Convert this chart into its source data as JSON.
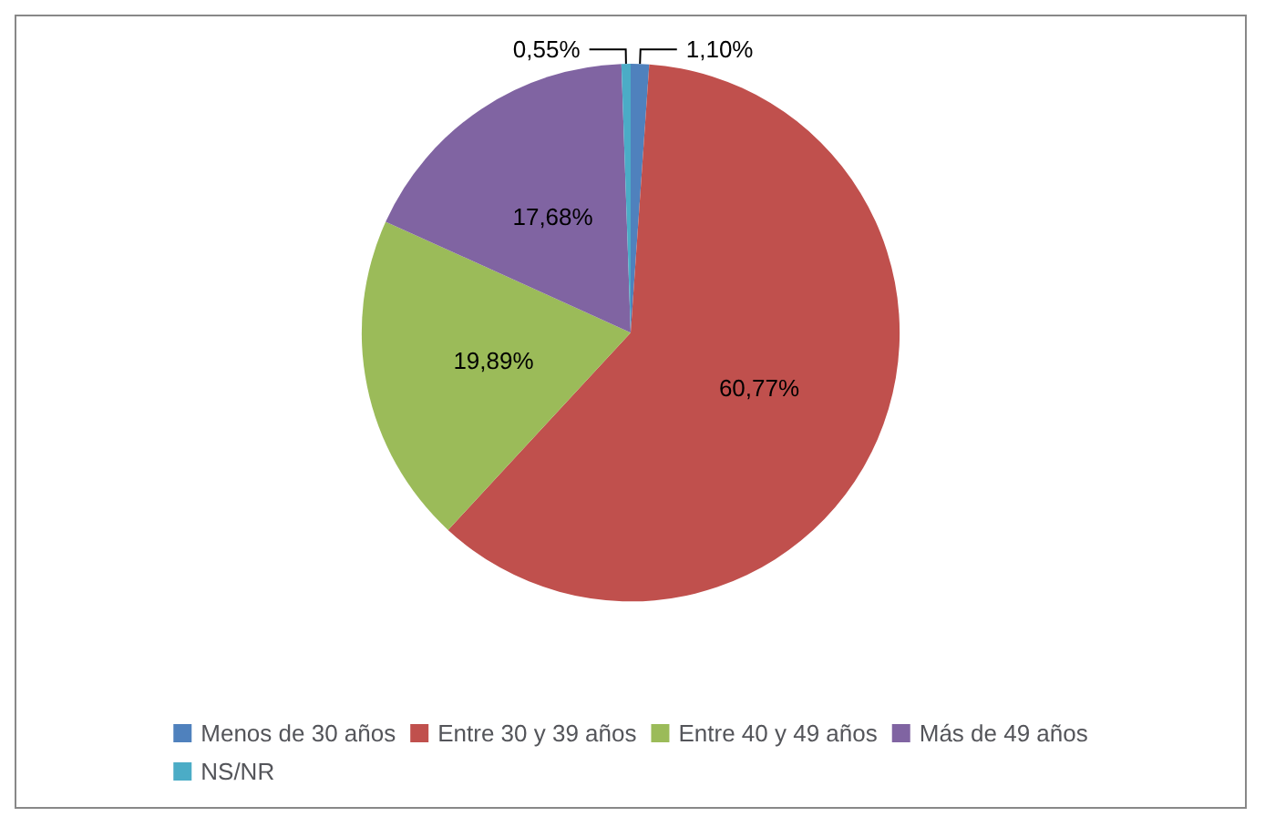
{
  "chart_data": {
    "type": "pie",
    "categories": [
      "Menos de 30 años",
      "Entre 30 y 39 años",
      "Entre 40 y 49 años",
      "Más de 49 años",
      "NS/NR"
    ],
    "values": [
      1.1,
      60.77,
      19.89,
      17.68,
      0.55
    ],
    "colors": [
      "#4f81bd",
      "#c0504d",
      "#9bbb59",
      "#8064a2",
      "#4bacc6"
    ],
    "value_labels": [
      "1,10%",
      "60,77%",
      "19,89%",
      "17,68%",
      "0,55%"
    ],
    "legend": "bottom"
  }
}
